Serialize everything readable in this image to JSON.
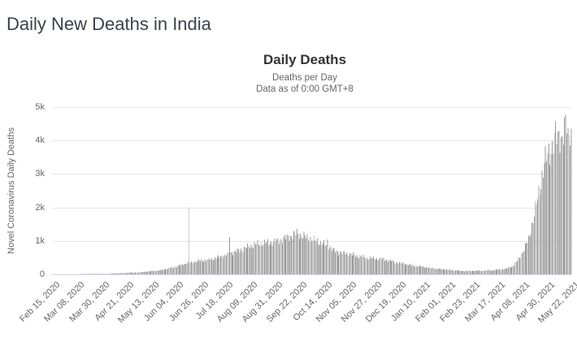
{
  "page": {
    "title": "Daily New Deaths in India"
  },
  "colors": {
    "page_title": "#3c414b",
    "chart_title": "#333333",
    "subtitle": "#666666",
    "axis_labels": "#666666",
    "bar": "#9a9a9a",
    "gridline": "#e6e6e6",
    "axis_line": "#ccd6eb",
    "background": "#ffffff"
  },
  "chart_data": {
    "type": "bar",
    "title": "Daily Deaths",
    "subtitle_line1": "Deaths per Day",
    "subtitle_line2": "Data as of 0:00 GMT+8",
    "ylabel": "Novel Coronavirus Daily Deaths",
    "xlabel": "",
    "ylim": [
      0,
      5000
    ],
    "y_tick_labels": [
      "0",
      "1k",
      "2k",
      "3k",
      "4k",
      "5k"
    ],
    "y_tick_values": [
      0,
      1000,
      2000,
      3000,
      4000,
      5000
    ],
    "x_tick_labels": [
      "Feb 15, 2020",
      "Mar 08, 2020",
      "Mar 30, 2020",
      "Apr 21, 2020",
      "May 13, 2020",
      "Jun 04, 2020",
      "Jun 26, 2020",
      "Jul 18, 2020",
      "Aug 09, 2020",
      "Aug 31, 2020",
      "Sep 22, 2020",
      "Oct 14, 2020",
      "Nov 05, 2020",
      "Nov 27, 2020",
      "Dec 19, 2020",
      "Jan 10, 2021",
      "Feb 01, 2021",
      "Feb 23, 2021",
      "Mar 17, 2021",
      "Apr 08, 2021",
      "Apr 30, 2021",
      "May 22, 2021"
    ],
    "x_tick_interval_days": 22,
    "date_range": {
      "start": "Feb 15, 2020",
      "end": "May 22, 2021",
      "days": 463
    },
    "grid": true,
    "legend": false,
    "series": [
      {
        "name": "Daily Deaths",
        "unit": "deaths per day",
        "anchors": [
          [
            0,
            0
          ],
          [
            25,
            0
          ],
          [
            32,
            2
          ],
          [
            40,
            5
          ],
          [
            47,
            10
          ],
          [
            54,
            20
          ],
          [
            61,
            33
          ],
          [
            68,
            45
          ],
          [
            75,
            55
          ],
          [
            82,
            75
          ],
          [
            89,
            95
          ],
          [
            96,
            115
          ],
          [
            103,
            170
          ],
          [
            110,
            225
          ],
          [
            116,
            290
          ],
          [
            121,
            340
          ],
          [
            123,
            355
          ],
          [
            130,
            395
          ],
          [
            137,
            430
          ],
          [
            144,
            470
          ],
          [
            151,
            540
          ],
          [
            157,
            600
          ],
          [
            159,
            640
          ],
          [
            166,
            710
          ],
          [
            173,
            800
          ],
          [
            180,
            890
          ],
          [
            187,
            930
          ],
          [
            194,
            950
          ],
          [
            201,
            1000
          ],
          [
            208,
            1090
          ],
          [
            215,
            1180
          ],
          [
            218,
            1250
          ],
          [
            222,
            1160
          ],
          [
            229,
            1080
          ],
          [
            236,
            990
          ],
          [
            243,
            890
          ],
          [
            247,
            820
          ],
          [
            251,
            700
          ],
          [
            258,
            640
          ],
          [
            265,
            610
          ],
          [
            272,
            540
          ],
          [
            279,
            510
          ],
          [
            286,
            470
          ],
          [
            293,
            465
          ],
          [
            300,
            420
          ],
          [
            307,
            350
          ],
          [
            314,
            320
          ],
          [
            321,
            260
          ],
          [
            328,
            230
          ],
          [
            335,
            200
          ],
          [
            342,
            165
          ],
          [
            349,
            150
          ],
          [
            356,
            125
          ],
          [
            363,
            105
          ],
          [
            370,
            95
          ],
          [
            377,
            105
          ],
          [
            384,
            110
          ],
          [
            391,
            120
          ],
          [
            398,
            145
          ],
          [
            405,
            175
          ],
          [
            410,
            250
          ],
          [
            414,
            400
          ],
          [
            417,
            550
          ],
          [
            420,
            750
          ],
          [
            424,
            1050
          ],
          [
            428,
            1620
          ],
          [
            431,
            2100
          ],
          [
            435,
            2770
          ],
          [
            438,
            3290
          ],
          [
            442,
            3690
          ],
          [
            445,
            3800
          ],
          [
            448,
            4100
          ],
          [
            452,
            4210
          ],
          [
            454,
            4000
          ],
          [
            456,
            4280
          ],
          [
            458,
            4520
          ],
          [
            459,
            4180
          ],
          [
            460,
            4250
          ],
          [
            461,
            4450
          ],
          [
            462,
            4200
          ]
        ],
        "spikes": [
          [
            122,
            2000
          ],
          [
            158,
            1120
          ],
          [
            245,
            1040
          ]
        ],
        "first_wave_peak": 1250,
        "second_wave_peak": 4520
      }
    ]
  }
}
